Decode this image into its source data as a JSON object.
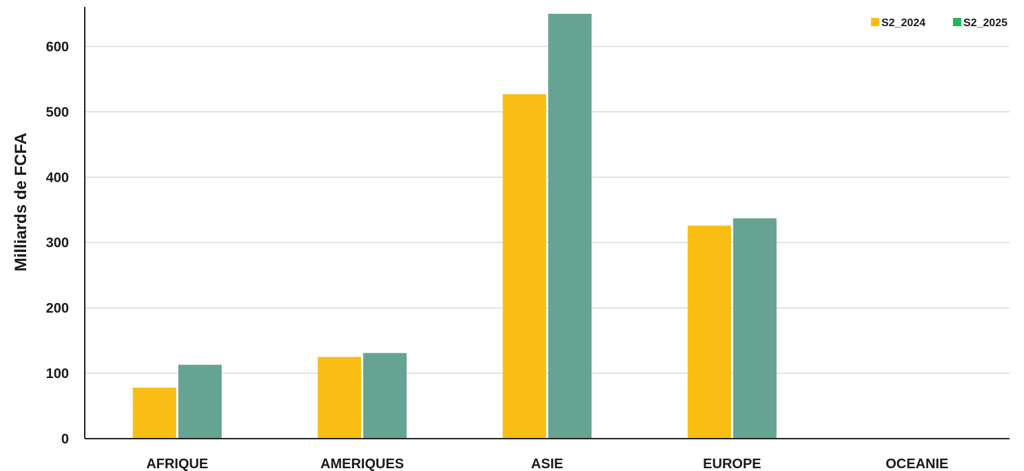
{
  "chart_data": {
    "type": "bar",
    "title": "",
    "xlabel": "",
    "ylabel": "Milliards de FCFA",
    "categories": [
      "AFRIQUE",
      "AMERIQUES",
      "ASIE",
      "EUROPE",
      "OCEANIE"
    ],
    "series": [
      {
        "name": "S2_2024",
        "color": "#F9BE14",
        "values": [
          78,
          125,
          527,
          326,
          0
        ]
      },
      {
        "name": "S2_2025",
        "color": "#66A393",
        "values": [
          113,
          131,
          650,
          337,
          0
        ]
      }
    ],
    "ylim": [
      0,
      650
    ],
    "yticks": [
      0,
      100,
      200,
      300,
      400,
      500,
      600
    ],
    "grid": true,
    "legend_position": "top-right",
    "legend_swatch_colors": [
      "#F9BE14",
      "#1DB954"
    ]
  }
}
